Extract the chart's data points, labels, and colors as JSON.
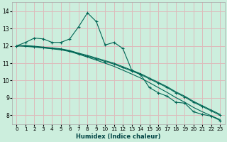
{
  "xlabel": "Humidex (Indice chaleur)",
  "bg_color": "#cceedd",
  "grid_color": "#ddbbbb",
  "line_color": "#006655",
  "xlim": [
    -0.5,
    23.5
  ],
  "ylim": [
    7.5,
    14.5
  ],
  "yticks": [
    8,
    9,
    10,
    11,
    12,
    13,
    14
  ],
  "xticks": [
    0,
    1,
    2,
    3,
    4,
    5,
    6,
    7,
    8,
    9,
    10,
    11,
    12,
    13,
    14,
    15,
    16,
    17,
    18,
    19,
    20,
    21,
    22,
    23
  ],
  "series1_x": [
    0,
    1,
    2,
    3,
    4,
    5,
    6,
    7,
    8,
    9,
    10,
    11,
    12,
    13,
    14,
    15,
    16,
    17,
    18,
    19,
    20,
    21,
    22,
    23
  ],
  "series1_y": [
    12.0,
    12.2,
    12.45,
    12.4,
    12.2,
    12.2,
    12.4,
    13.1,
    13.9,
    13.4,
    12.05,
    12.2,
    11.85,
    10.6,
    10.35,
    9.6,
    9.3,
    9.1,
    8.75,
    8.7,
    8.2,
    8.05,
    7.95,
    7.7
  ],
  "series2_x": [
    0,
    1,
    2,
    3,
    4,
    5,
    6,
    7,
    8,
    9,
    10,
    11,
    12,
    13,
    14,
    15,
    16,
    17,
    18,
    19,
    20,
    21,
    22,
    23
  ],
  "series2_y": [
    12.0,
    12.0,
    11.95,
    11.9,
    11.85,
    11.8,
    11.7,
    11.55,
    11.4,
    11.25,
    11.1,
    10.95,
    10.75,
    10.55,
    10.35,
    10.1,
    9.85,
    9.6,
    9.3,
    9.05,
    8.75,
    8.5,
    8.25,
    8.0
  ],
  "series3_x": [
    0,
    1,
    2,
    3,
    4,
    5,
    6,
    7,
    8,
    9,
    10,
    11,
    12,
    13,
    14,
    15,
    16,
    17,
    18,
    19,
    20,
    21,
    22,
    23
  ],
  "series3_y": [
    12.0,
    11.97,
    11.93,
    11.88,
    11.83,
    11.77,
    11.67,
    11.52,
    11.35,
    11.18,
    11.0,
    10.82,
    10.6,
    10.38,
    10.15,
    9.88,
    9.6,
    9.32,
    9.02,
    8.75,
    8.45,
    8.2,
    7.97,
    7.75
  ],
  "series4_x": [
    0,
    1,
    2,
    3,
    4,
    5,
    6,
    7,
    8,
    9,
    10,
    11,
    12,
    13,
    14,
    15,
    16,
    17,
    18,
    19,
    20,
    21,
    22,
    23
  ],
  "series4_y": [
    12.0,
    12.02,
    11.98,
    11.93,
    11.88,
    11.83,
    11.73,
    11.58,
    11.45,
    11.3,
    11.15,
    11.0,
    10.8,
    10.6,
    10.4,
    10.15,
    9.9,
    9.65,
    9.35,
    9.1,
    8.8,
    8.55,
    8.3,
    8.05
  ]
}
